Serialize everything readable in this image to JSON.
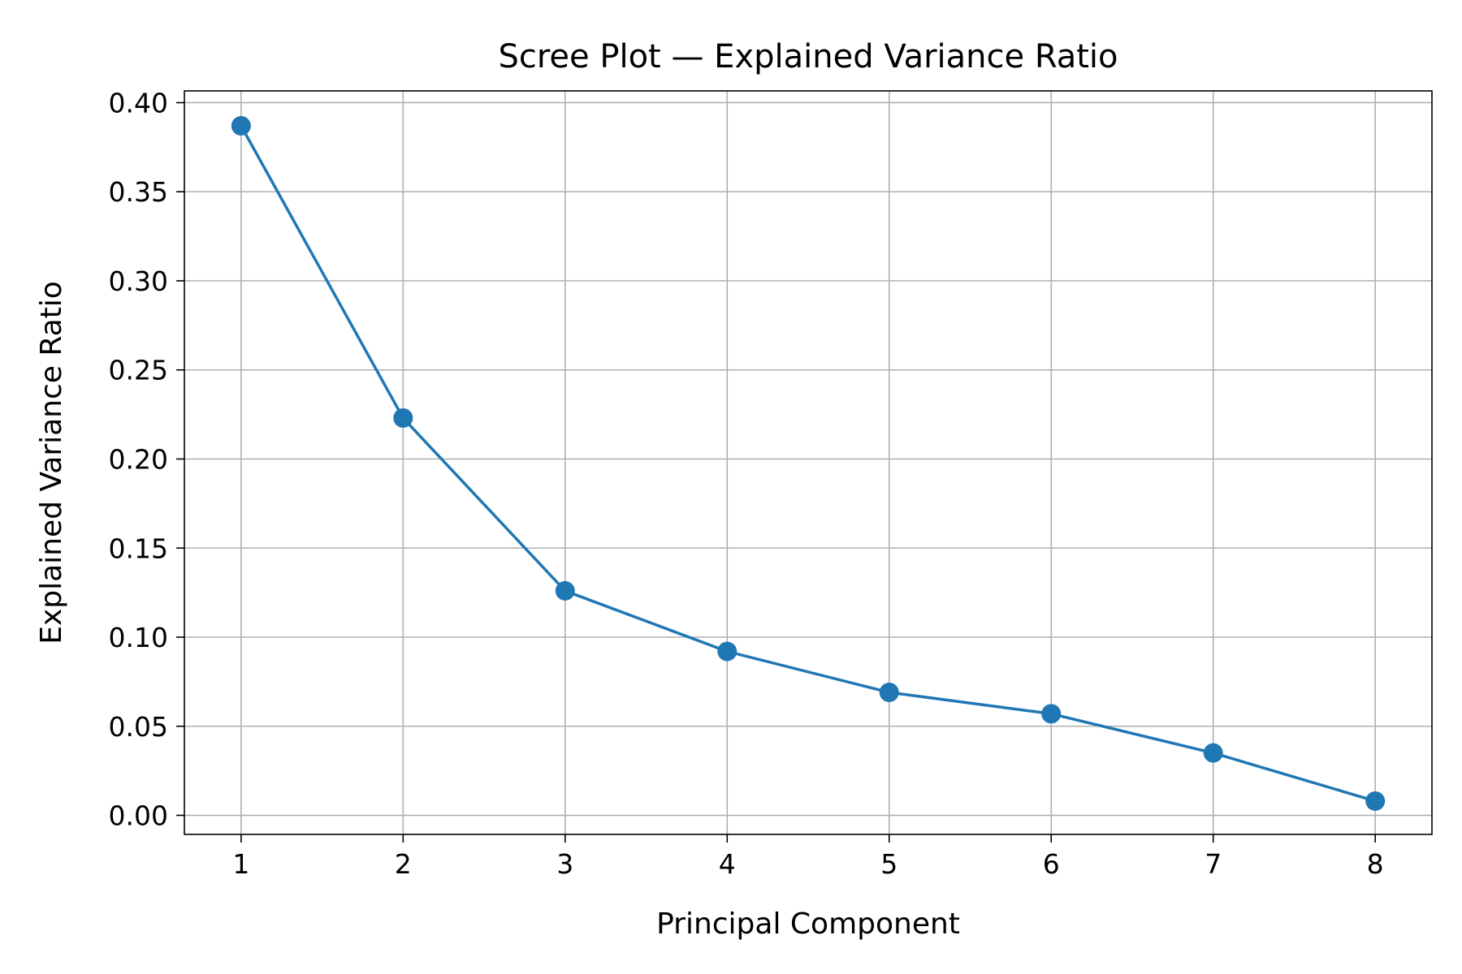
{
  "chart_data": {
    "type": "line",
    "title": "Scree Plot — Explained Variance Ratio",
    "xlabel": "Principal Component",
    "ylabel": "Explained Variance Ratio",
    "x": [
      1,
      2,
      3,
      4,
      5,
      6,
      7,
      8
    ],
    "series": [
      {
        "values": [
          0.387,
          0.223,
          0.126,
          0.092,
          0.069,
          0.057,
          0.035,
          0.008
        ],
        "color": "#1f77b4",
        "marker": "circle"
      }
    ],
    "xlim": [
      0.65,
      8.35
    ],
    "ylim": [
      -0.0107,
      0.4066
    ],
    "xticks": [
      "1",
      "2",
      "3",
      "4",
      "5",
      "6",
      "7",
      "8"
    ],
    "yticks": [
      "0.00",
      "0.05",
      "0.10",
      "0.15",
      "0.20",
      "0.25",
      "0.30",
      "0.35",
      "0.40"
    ],
    "grid": true,
    "legend": "none"
  }
}
